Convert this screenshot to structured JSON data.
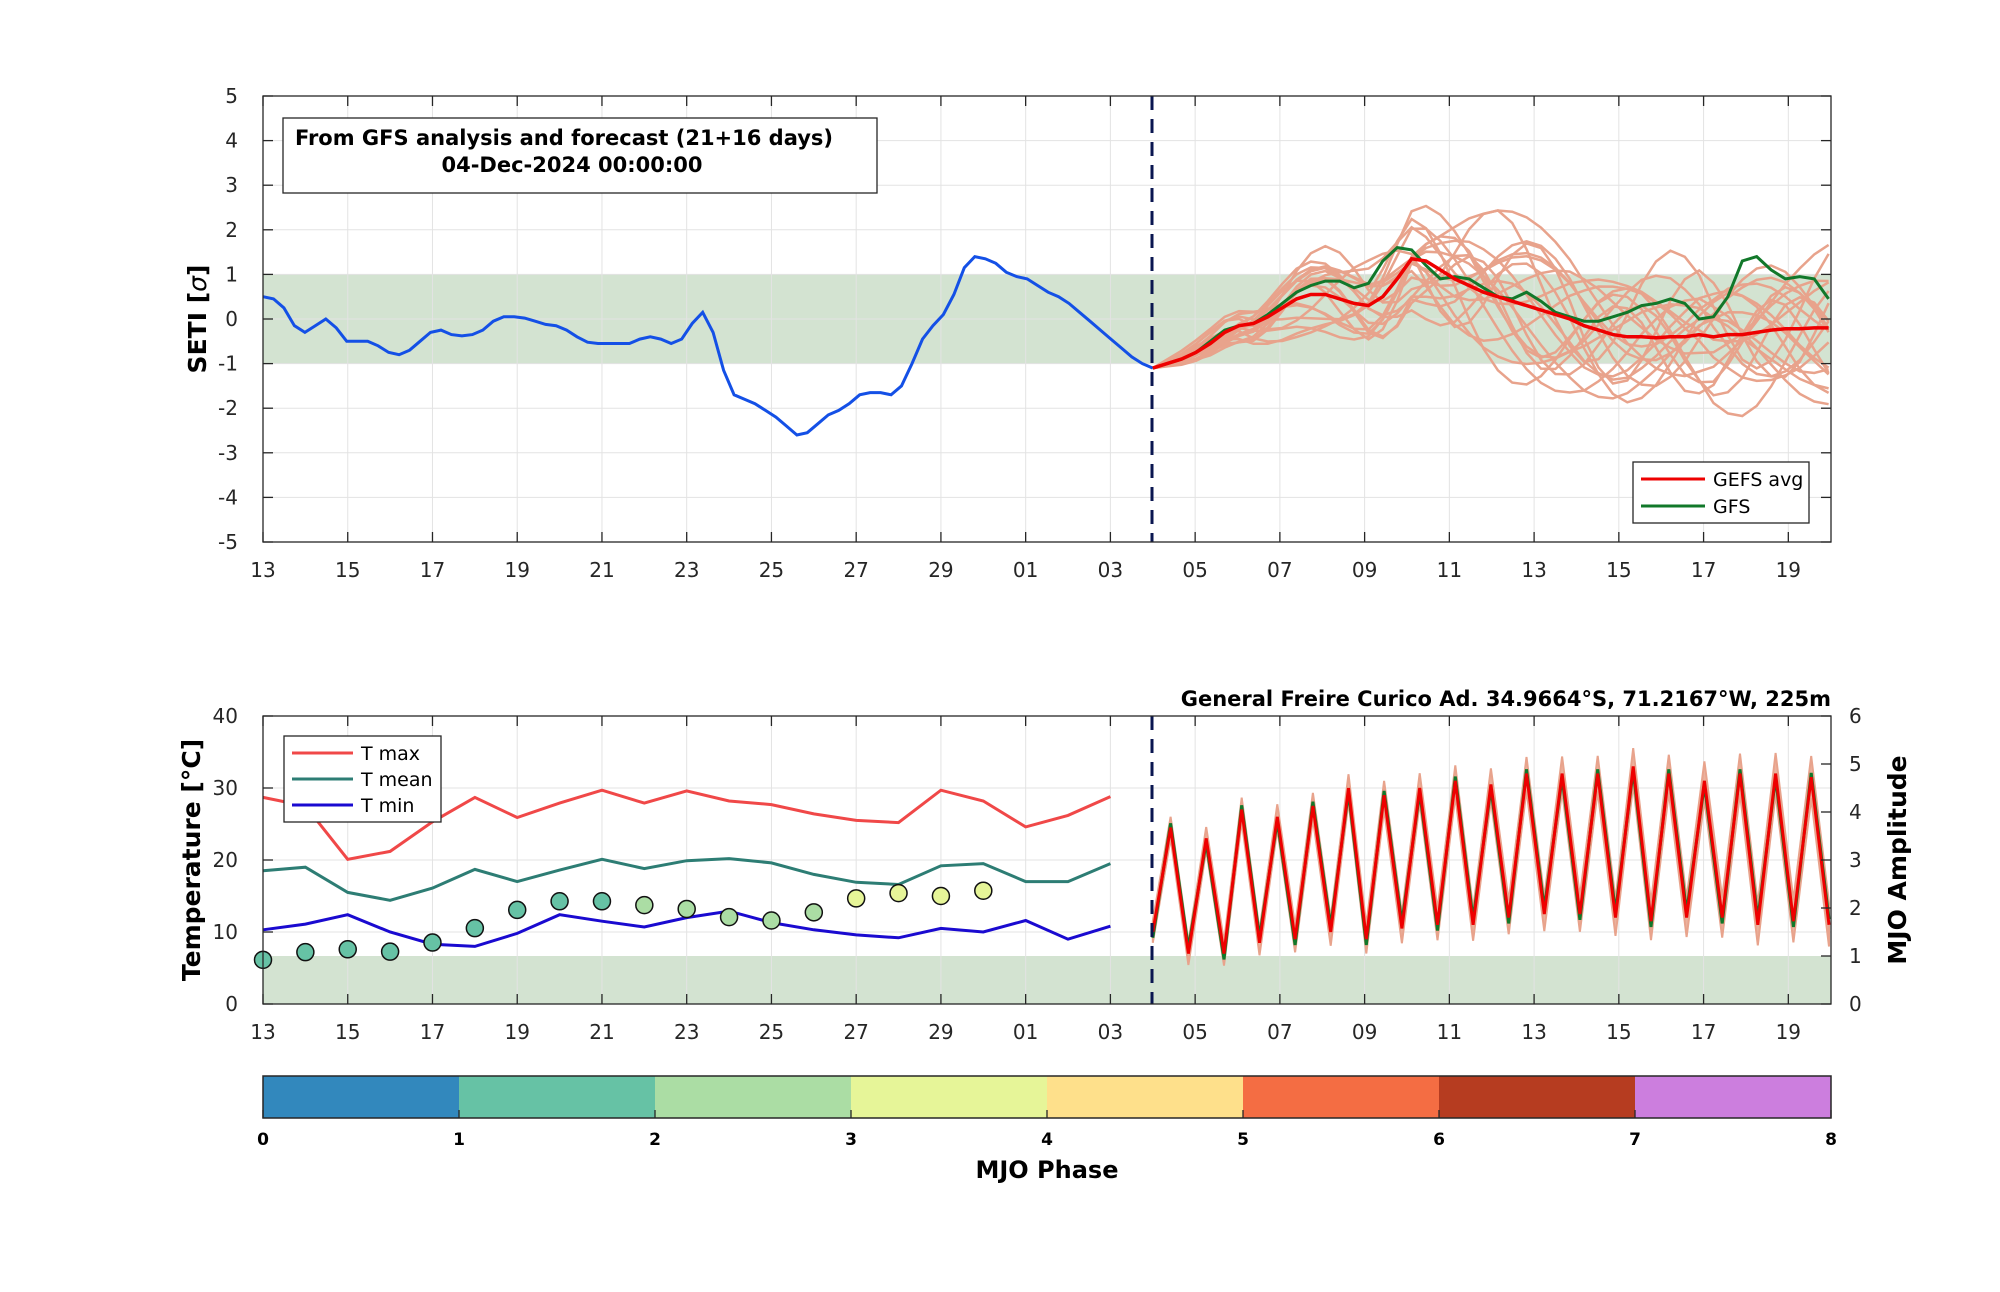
{
  "chart_data": [
    {
      "type": "line",
      "ylabel_text": "SETI [",
      "ylabel_sigma": "σ",
      "ylabel_close": "]",
      "ylim": [
        -5,
        5
      ],
      "yticks": [
        "5",
        "4",
        "3",
        "2",
        "1",
        "0",
        "-1",
        "-2",
        "-3",
        "-4",
        "-5"
      ],
      "xticks": [
        "13",
        "15",
        "17",
        "19",
        "21",
        "23",
        "25",
        "27",
        "29",
        "01",
        "03",
        "05",
        "07",
        "09",
        "11",
        "13",
        "15",
        "17",
        "19"
      ],
      "grid": true,
      "annotation_line1": "From GFS analysis and forecast (21+16 days)",
      "annotation_line2": "04-Dec-2024 00:00:00",
      "shaded_band": [
        -1,
        1
      ],
      "forecast_start_day": "04",
      "legend_position": "bottom-right",
      "legend": {
        "gefs": "GEFS avg",
        "gfs": "GFS"
      },
      "colors": {
        "analysis": "#1450e6",
        "gefs_avg": "#ee0000",
        "gfs": "#11782a",
        "members": "#e8a38c",
        "band": "#d3e3d1",
        "divider": "#0a1650"
      },
      "analysis_series": [
        0.5,
        0.45,
        0.25,
        -0.15,
        -0.3,
        -0.15,
        0.0,
        -0.2,
        -0.5,
        -0.5,
        -0.5,
        -0.6,
        -0.75,
        -0.8,
        -0.7,
        -0.5,
        -0.3,
        -0.25,
        -0.35,
        -0.38,
        -0.35,
        -0.25,
        -0.05,
        0.05,
        0.05,
        0.02,
        -0.05,
        -0.12,
        -0.15,
        -0.25,
        -0.4,
        -0.52,
        -0.55,
        -0.55,
        -0.55,
        -0.55,
        -0.45,
        -0.4,
        -0.45,
        -0.55,
        -0.45,
        -0.1,
        0.15,
        -0.3,
        -1.15,
        -1.7,
        -1.8,
        -1.9,
        -2.05,
        -2.2,
        -2.4,
        -2.6,
        -2.55,
        -2.35,
        -2.15,
        -2.05,
        -1.9,
        -1.7,
        -1.65,
        -1.65,
        -1.7,
        -1.5,
        -1.0,
        -0.45,
        -0.15,
        0.1,
        0.55,
        1.15,
        1.4,
        1.35,
        1.25,
        1.05,
        0.95,
        0.9,
        0.75,
        0.6,
        0.5,
        0.35,
        0.15,
        -0.05,
        -0.25,
        -0.45,
        -0.65,
        -0.85,
        -1.0,
        -1.1
      ],
      "gefs_avg_series": [
        -1.1,
        -1.0,
        -0.9,
        -0.75,
        -0.55,
        -0.3,
        -0.15,
        -0.1,
        0.05,
        0.25,
        0.45,
        0.55,
        0.55,
        0.45,
        0.35,
        0.3,
        0.5,
        0.9,
        1.35,
        1.3,
        1.1,
        0.9,
        0.75,
        0.6,
        0.5,
        0.4,
        0.3,
        0.2,
        0.1,
        0.0,
        -0.15,
        -0.25,
        -0.35,
        -0.4,
        -0.4,
        -0.42,
        -0.4,
        -0.4,
        -0.35,
        -0.4,
        -0.35,
        -0.35,
        -0.3,
        -0.25,
        -0.22,
        -0.22,
        -0.2,
        -0.2
      ],
      "gfs_series": [
        -1.1,
        -1.0,
        -0.9,
        -0.75,
        -0.5,
        -0.25,
        -0.15,
        -0.1,
        0.1,
        0.35,
        0.6,
        0.75,
        0.85,
        0.85,
        0.7,
        0.8,
        1.3,
        1.6,
        1.55,
        1.2,
        0.9,
        0.95,
        0.9,
        0.7,
        0.5,
        0.45,
        0.6,
        0.4,
        0.15,
        0.05,
        -0.05,
        -0.05,
        0.05,
        0.15,
        0.3,
        0.35,
        0.45,
        0.35,
        0.0,
        0.05,
        0.5,
        1.3,
        1.4,
        1.1,
        0.9,
        0.95,
        0.9,
        0.45
      ]
    },
    {
      "type": "line",
      "ylabel_left": "Temperature [°C]",
      "ylabel_right": "MJO Amplitude",
      "ylim_left": [
        0,
        40
      ],
      "ylim_right": [
        0,
        6
      ],
      "yticks_left": [
        "40",
        "30",
        "20",
        "10",
        "0"
      ],
      "yticks_right": [
        "6",
        "5",
        "4",
        "3",
        "2",
        "1",
        "0"
      ],
      "xticks": [
        "13",
        "15",
        "17",
        "19",
        "21",
        "23",
        "25",
        "27",
        "29",
        "01",
        "03",
        "05",
        "07",
        "09",
        "11",
        "13",
        "15",
        "17",
        "19"
      ],
      "title": "General Freire Curico Ad. 34.9664°S, 71.2167°W, 225m",
      "legend_position": "top-left",
      "legend": {
        "tmax": "T max",
        "tmean": "T mean",
        "tmin": "T min"
      },
      "colors": {
        "tmax": "#f04848",
        "tmean": "#2d7d74",
        "tmin": "#1a0ad0",
        "forecast_gefs": "#ee0000",
        "forecast_gfs": "#11782a",
        "members": "#e8a38c",
        "band": "#d3e3d1"
      },
      "shaded_band_amplitude": [
        0,
        1
      ],
      "tmax": [
        28.7,
        27.5,
        20.1,
        21.2,
        25.3,
        28.7,
        25.9,
        27.9,
        29.7,
        27.9,
        29.6,
        28.2,
        27.7,
        26.4,
        25.5,
        25.2,
        29.7,
        28.2,
        24.6,
        26.2,
        28.8
      ],
      "tmean": [
        18.5,
        19.0,
        15.5,
        14.4,
        16.1,
        18.7,
        17.0,
        18.6,
        20.1,
        18.8,
        19.9,
        20.2,
        19.6,
        18.0,
        16.9,
        16.6,
        19.2,
        19.5,
        17.0,
        17.0,
        19.5
      ],
      "tmin": [
        10.3,
        11.1,
        12.4,
        10.0,
        8.3,
        8.0,
        9.8,
        12.4,
        11.5,
        10.7,
        12.0,
        12.9,
        11.3,
        10.3,
        9.6,
        9.2,
        10.5,
        10.0,
        11.6,
        9.0,
        10.8
      ],
      "mjo_amplitude": [
        0.92,
        1.08,
        1.14,
        1.09,
        1.28,
        1.58,
        1.96,
        2.14,
        2.14,
        2.06,
        1.98,
        1.81,
        1.74,
        1.91,
        2.2,
        2.31,
        2.25,
        2.36
      ],
      "mjo_phase": [
        1.1,
        1.15,
        1.2,
        1.2,
        1.25,
        1.4,
        1.6,
        1.9,
        1.7,
        2.1,
        2.1,
        2.4,
        2.3,
        2.6,
        3.4,
        3.5,
        3.6,
        3.8
      ],
      "forecast_tmax": [
        24.5,
        23,
        27,
        26,
        27.5,
        30,
        29,
        30,
        31,
        30.5,
        32,
        32,
        32,
        33,
        32,
        31,
        32,
        32,
        31.5,
        32
      ],
      "forecast_tmin": [
        10,
        7,
        7,
        8.5,
        9,
        10,
        9,
        10.5,
        11,
        11,
        12,
        12.5,
        12.5,
        12,
        11.5,
        12,
        12,
        11,
        11.5,
        11
      ]
    },
    {
      "type": "colorbar",
      "xlabel": "MJO Phase",
      "ticks": [
        "0",
        "1",
        "2",
        "3",
        "4",
        "5",
        "6",
        "7",
        "8"
      ],
      "colors": [
        "#3288bd",
        "#66c2a5",
        "#abdda4",
        "#e6f598",
        "#fee08b",
        "#f46d43",
        "#b63c20",
        "#cc7ede"
      ]
    }
  ]
}
